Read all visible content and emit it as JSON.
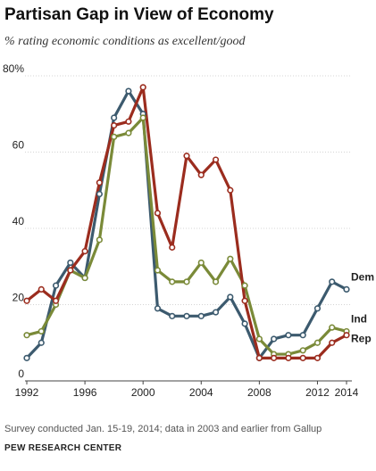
{
  "chart_data": {
    "type": "line",
    "title": "Partisan Gap in View of Economy",
    "subtitle": "% rating economic conditions as excellent/good",
    "x": [
      1992,
      1993,
      1994,
      1995,
      1996,
      1997,
      1998,
      1999,
      2000,
      2001,
      2002,
      2003,
      2004,
      2005,
      2006,
      2007,
      2008,
      2009,
      2010,
      2011,
      2012,
      2013,
      2014
    ],
    "series": [
      {
        "name": "Dem",
        "color": "#3c5a6e",
        "values": [
          6,
          10,
          25,
          31,
          27,
          49,
          69,
          76,
          70,
          19,
          17,
          17,
          17,
          18,
          22,
          15,
          6,
          11,
          12,
          12,
          19,
          26,
          24
        ]
      },
      {
        "name": "Ind",
        "color": "#7a8a38",
        "values": [
          12,
          13,
          20,
          29,
          27,
          37,
          64,
          65,
          69,
          29,
          26,
          26,
          31,
          26,
          32,
          25,
          11,
          7,
          7,
          8,
          10,
          14,
          13
        ]
      },
      {
        "name": "Rep",
        "color": "#9b2c1e",
        "values": [
          21,
          24,
          21,
          29,
          34,
          52,
          67,
          68,
          77,
          44,
          35,
          59,
          54,
          58,
          50,
          21,
          6,
          6,
          6,
          6,
          6,
          10,
          12
        ]
      }
    ],
    "yticks": [
      "0",
      "20",
      "40",
      "60",
      "80%"
    ],
    "ytick_values": [
      0,
      20,
      40,
      60,
      80
    ],
    "xticks": [
      "1992",
      "1996",
      "2000",
      "2004",
      "2008",
      "2012",
      "2014"
    ],
    "xtick_values": [
      1992,
      1996,
      2000,
      2004,
      2008,
      2012,
      2014
    ],
    "xlim": [
      1992,
      2014
    ],
    "ylim": [
      0,
      80
    ],
    "grid": "horizontal",
    "legend": "inline labels at line ends"
  },
  "footer": {
    "note": "Survey conducted Jan. 15-19, 2014; data in 2003 and earlier from Gallup",
    "source": "PEW RESEARCH CENTER"
  }
}
